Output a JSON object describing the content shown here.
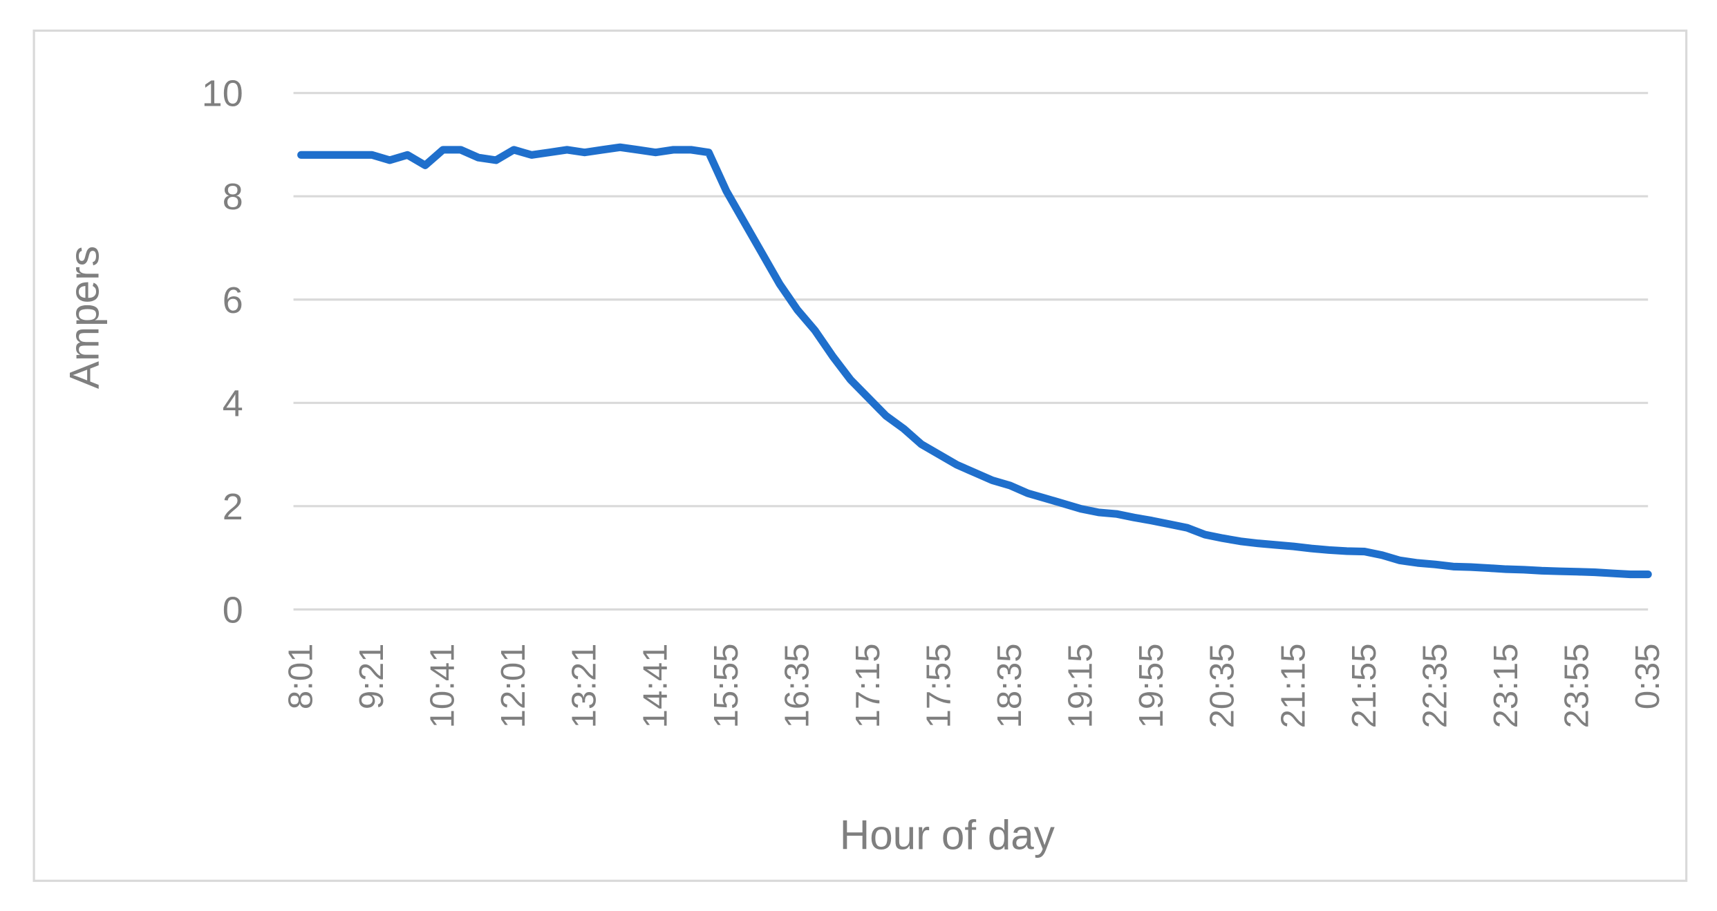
{
  "chart_data": {
    "type": "line",
    "x_label": "Hour of day",
    "y_label": "Ampers",
    "categories": [
      "8:01",
      null,
      null,
      null,
      "9:21",
      null,
      null,
      null,
      "10:41",
      null,
      null,
      null,
      "12:01",
      null,
      null,
      null,
      "13:21",
      null,
      null,
      null,
      "14:41",
      null,
      null,
      null,
      "15:55",
      null,
      null,
      null,
      "16:35",
      null,
      null,
      null,
      "17:15",
      null,
      null,
      null,
      "17:55",
      null,
      null,
      null,
      "18:35",
      null,
      null,
      null,
      "19:15",
      null,
      null,
      null,
      "19:55",
      null,
      null,
      null,
      "20:35",
      null,
      null,
      null,
      "21:15",
      null,
      null,
      null,
      "21:55",
      null,
      null,
      null,
      "22:35",
      null,
      null,
      null,
      "23:15",
      null,
      null,
      null,
      "23:55",
      null,
      null,
      null,
      "0:35"
    ],
    "values": [
      8.8,
      8.8,
      8.8,
      8.8,
      8.8,
      8.7,
      8.8,
      8.6,
      8.9,
      8.9,
      8.75,
      8.7,
      8.9,
      8.8,
      8.85,
      8.9,
      8.85,
      8.9,
      8.95,
      8.9,
      8.85,
      8.9,
      8.9,
      8.85,
      8.1,
      7.5,
      6.9,
      6.3,
      5.8,
      5.4,
      4.9,
      4.45,
      4.1,
      3.75,
      3.5,
      3.2,
      3.0,
      2.8,
      2.65,
      2.5,
      2.4,
      2.25,
      2.15,
      2.05,
      1.95,
      1.88,
      1.85,
      1.78,
      1.72,
      1.65,
      1.58,
      1.45,
      1.38,
      1.32,
      1.28,
      1.25,
      1.22,
      1.18,
      1.15,
      1.13,
      1.12,
      1.05,
      0.95,
      0.9,
      0.87,
      0.83,
      0.82,
      0.8,
      0.78,
      0.77,
      0.75,
      0.74,
      0.73,
      0.72,
      0.7,
      0.68,
      0.68
    ],
    "color": "#1f6fcc",
    "ylim": [
      0,
      10
    ],
    "yticks": [
      0,
      2,
      4,
      6,
      8,
      10
    ],
    "grid": true
  }
}
